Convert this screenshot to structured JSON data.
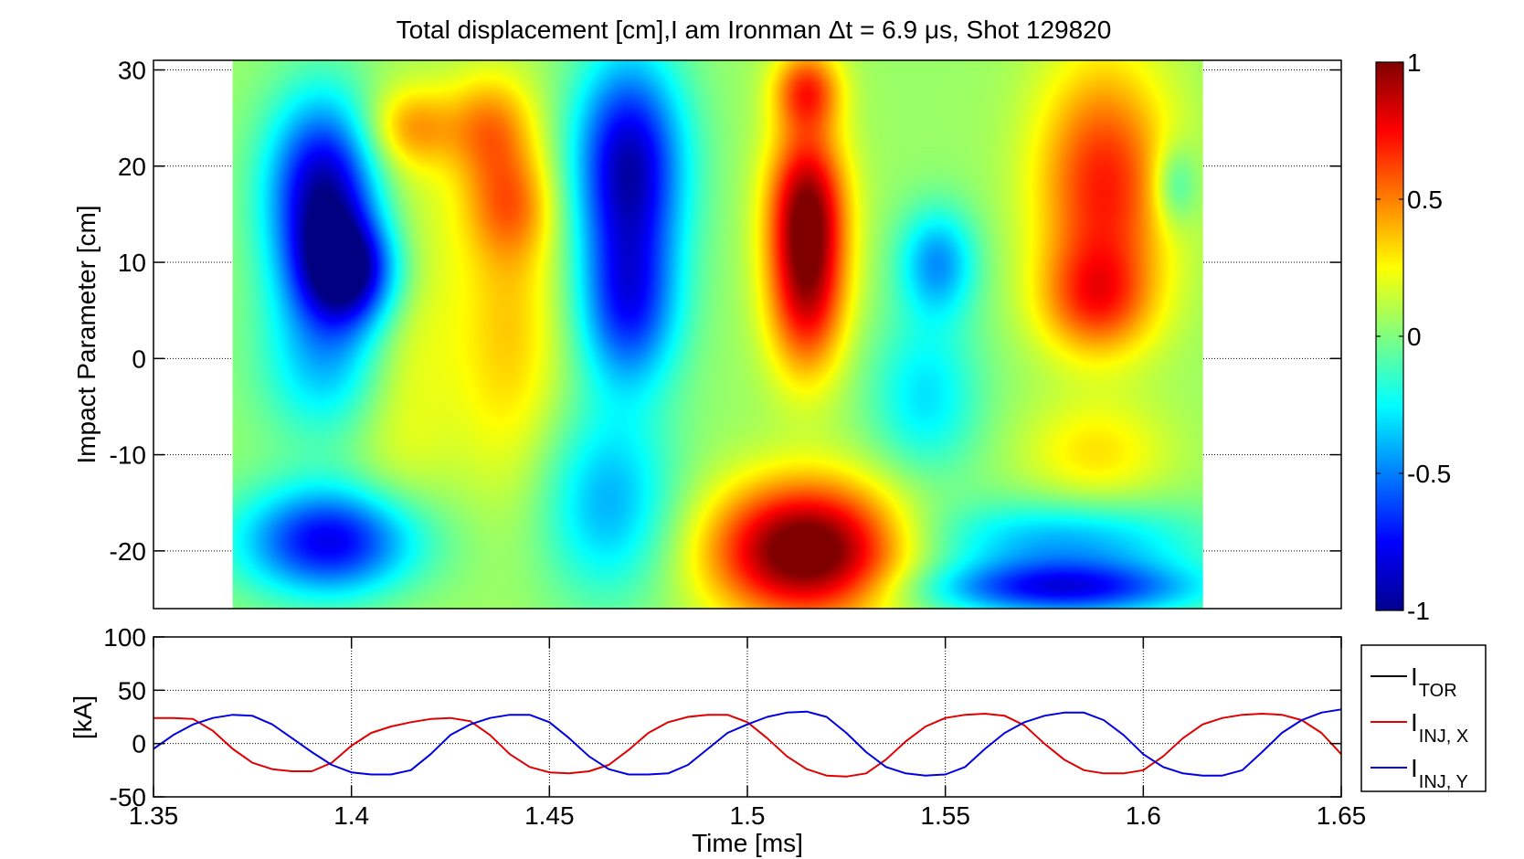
{
  "chart_data": [
    {
      "type": "heatmap",
      "title": "Total displacement [cm],I am Ironman Δt = 6.9 μs, Shot 129820",
      "xlabel": "",
      "ylabel": "Impact Parameter [cm]",
      "xlim": [
        1.35,
        1.65
      ],
      "ylim": [
        -26,
        31
      ],
      "x_extent": [
        1.37,
        1.615
      ],
      "yticks": [
        -20,
        -10,
        0,
        10,
        20,
        30
      ],
      "ytick_labels": [
        "-20",
        "-10",
        "0",
        "10",
        "20",
        "30"
      ],
      "colorbar": {
        "range": [
          -1,
          1
        ],
        "ticks": [
          -1,
          -0.5,
          0,
          0.5,
          1
        ],
        "tick_labels": [
          "-1",
          "-0.5",
          "0",
          "0.5",
          "1"
        ],
        "colormap": "jet"
      },
      "features": [
        {
          "t": 1.393,
          "y": 17,
          "amp": -1.0,
          "st": 0.01,
          "sy": 7
        },
        {
          "t": 1.4,
          "y": 9,
          "amp": -0.85,
          "st": 0.009,
          "sy": 4
        },
        {
          "t": 1.395,
          "y": 0,
          "amp": -0.45,
          "st": 0.012,
          "sy": 6
        },
        {
          "t": 1.415,
          "y": 24,
          "amp": 0.35,
          "st": 0.008,
          "sy": 3
        },
        {
          "t": 1.412,
          "y": 2,
          "amp": 0.25,
          "st": 0.01,
          "sy": 14
        },
        {
          "t": 1.435,
          "y": 24,
          "amp": 0.4,
          "st": 0.008,
          "sy": 4
        },
        {
          "t": 1.44,
          "y": 16,
          "amp": 0.35,
          "st": 0.008,
          "sy": 4
        },
        {
          "t": 1.44,
          "y": 3,
          "amp": 0.3,
          "st": 0.01,
          "sy": 12
        },
        {
          "t": 1.395,
          "y": -19,
          "amp": -0.85,
          "st": 0.016,
          "sy": 4
        },
        {
          "t": 1.47,
          "y": 20,
          "amp": -0.95,
          "st": 0.01,
          "sy": 8
        },
        {
          "t": 1.47,
          "y": 5,
          "amp": -0.65,
          "st": 0.009,
          "sy": 6
        },
        {
          "t": 1.465,
          "y": -15,
          "amp": -0.45,
          "st": 0.012,
          "sy": 7
        },
        {
          "t": 1.515,
          "y": 16,
          "amp": 0.85,
          "st": 0.007,
          "sy": 6
        },
        {
          "t": 1.515,
          "y": 6,
          "amp": 0.65,
          "st": 0.007,
          "sy": 6
        },
        {
          "t": 1.515,
          "y": 28,
          "amp": 0.55,
          "st": 0.006,
          "sy": 3
        },
        {
          "t": 1.515,
          "y": -20,
          "amp": 1.1,
          "st": 0.017,
          "sy": 5
        },
        {
          "t": 1.548,
          "y": 10,
          "amp": -0.5,
          "st": 0.007,
          "sy": 4
        },
        {
          "t": 1.545,
          "y": -4,
          "amp": -0.35,
          "st": 0.01,
          "sy": 6
        },
        {
          "t": 1.59,
          "y": 18,
          "amp": 0.65,
          "st": 0.012,
          "sy": 9
        },
        {
          "t": 1.588,
          "y": 6,
          "amp": 0.45,
          "st": 0.01,
          "sy": 4
        },
        {
          "t": 1.588,
          "y": -10,
          "amp": 0.25,
          "st": 0.013,
          "sy": 4
        },
        {
          "t": 1.58,
          "y": -24,
          "amp": -0.75,
          "st": 0.024,
          "sy": 2
        },
        {
          "t": 1.58,
          "y": -19,
          "amp": -0.45,
          "st": 0.025,
          "sy": 3
        },
        {
          "t": 1.608,
          "y": 18,
          "amp": -0.3,
          "st": 0.004,
          "sy": 3
        }
      ]
    },
    {
      "type": "line",
      "title": "",
      "xlabel": "Time [ms]",
      "ylabel": "[kA]",
      "xlim": [
        1.35,
        1.65
      ],
      "ylim": [
        -50,
        100
      ],
      "xticks": [
        1.35,
        1.4,
        1.45,
        1.5,
        1.55,
        1.6,
        1.65
      ],
      "xtick_labels": [
        "1.35",
        "1.4",
        "1.45",
        "1.5",
        "1.55",
        "1.6",
        "1.65"
      ],
      "yticks": [
        -50,
        0,
        50,
        100
      ],
      "ytick_labels": [
        "-50",
        "0",
        "50",
        "100"
      ],
      "grid": true,
      "legend_position": "outside-right",
      "series": [
        {
          "name": "I",
          "sub": "TOR",
          "color": "#000000",
          "x": [],
          "y": []
        },
        {
          "name": "I",
          "sub": "INJ, X",
          "color": "#e00000",
          "x": [
            1.35,
            1.355,
            1.36,
            1.365,
            1.37,
            1.375,
            1.38,
            1.385,
            1.39,
            1.395,
            1.4,
            1.405,
            1.41,
            1.415,
            1.42,
            1.425,
            1.43,
            1.435,
            1.44,
            1.445,
            1.45,
            1.455,
            1.46,
            1.465,
            1.47,
            1.475,
            1.48,
            1.485,
            1.49,
            1.495,
            1.5,
            1.505,
            1.51,
            1.515,
            1.52,
            1.525,
            1.53,
            1.535,
            1.54,
            1.545,
            1.55,
            1.555,
            1.56,
            1.565,
            1.57,
            1.575,
            1.58,
            1.585,
            1.59,
            1.595,
            1.6,
            1.605,
            1.61,
            1.615,
            1.62,
            1.625,
            1.63,
            1.635,
            1.64,
            1.645,
            1.65
          ],
          "y": [
            24,
            24,
            23,
            12,
            -5,
            -18,
            -24,
            -26,
            -26,
            -18,
            -2,
            10,
            16,
            20,
            23,
            24,
            21,
            8,
            -10,
            -22,
            -27,
            -28,
            -26,
            -20,
            -6,
            10,
            20,
            25,
            27,
            27,
            20,
            5,
            -12,
            -24,
            -30,
            -31,
            -28,
            -15,
            2,
            16,
            24,
            27,
            28,
            26,
            17,
            0,
            -15,
            -25,
            -28,
            -28,
            -25,
            -12,
            5,
            18,
            24,
            27,
            28,
            27,
            22,
            10,
            -10
          ]
        },
        {
          "name": "I",
          "sub": "INJ, Y",
          "color": "#0000e0",
          "x": [
            1.35,
            1.355,
            1.36,
            1.365,
            1.37,
            1.375,
            1.38,
            1.385,
            1.39,
            1.395,
            1.4,
            1.405,
            1.41,
            1.415,
            1.42,
            1.425,
            1.43,
            1.435,
            1.44,
            1.445,
            1.45,
            1.455,
            1.46,
            1.465,
            1.47,
            1.475,
            1.48,
            1.485,
            1.49,
            1.495,
            1.5,
            1.505,
            1.51,
            1.515,
            1.52,
            1.525,
            1.53,
            1.535,
            1.54,
            1.545,
            1.55,
            1.555,
            1.56,
            1.565,
            1.57,
            1.575,
            1.58,
            1.585,
            1.59,
            1.595,
            1.6,
            1.605,
            1.61,
            1.615,
            1.62,
            1.625,
            1.63,
            1.635,
            1.64,
            1.645,
            1.65
          ],
          "y": [
            -5,
            8,
            18,
            24,
            27,
            26,
            18,
            5,
            -8,
            -20,
            -27,
            -29,
            -29,
            -25,
            -10,
            8,
            18,
            24,
            27,
            27,
            20,
            5,
            -12,
            -24,
            -29,
            -29,
            -28,
            -20,
            -5,
            10,
            18,
            25,
            29,
            30,
            25,
            10,
            -8,
            -22,
            -28,
            -30,
            -29,
            -22,
            -5,
            10,
            20,
            26,
            29,
            29,
            22,
            8,
            -10,
            -22,
            -28,
            -30,
            -30,
            -25,
            -8,
            10,
            22,
            29,
            32
          ]
        }
      ]
    }
  ]
}
